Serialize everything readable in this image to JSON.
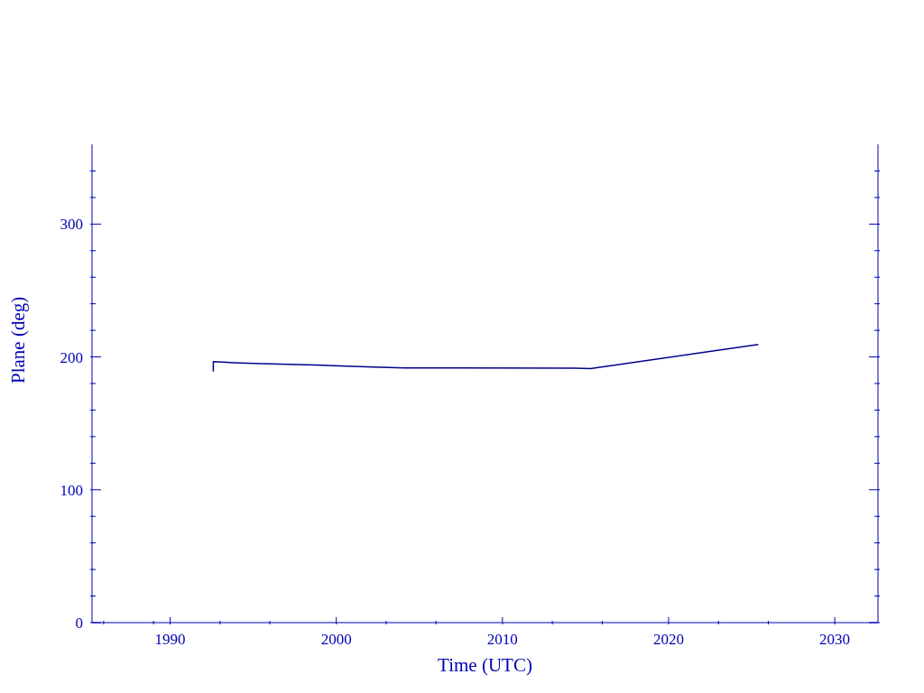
{
  "chart_data": {
    "type": "line",
    "xlabel": "Time (UTC)",
    "ylabel": "Plane (deg)",
    "x": [
      1992.6,
      1992.6,
      1993.8,
      1995.5,
      1997.1,
      1998.75,
      2000.2,
      2001.8,
      2004.1,
      2014.35,
      2015.3,
      2025.4
    ],
    "series": [
      {
        "color": "#00008b",
        "values": [
          189,
          196.4,
          195.7,
          195,
          194.5,
          193.9,
          193.2,
          192.5,
          191.8,
          191.6,
          191.2,
          209.3
        ]
      }
    ],
    "xlim": [
      1985.3,
      2032.6
    ],
    "xticks": [
      {
        "value": 1986,
        "label": null
      },
      {
        "value": 1989,
        "label": null
      },
      1990,
      {
        "value": 1993,
        "label": null
      },
      {
        "value": 1996,
        "label": null
      },
      2000,
      {
        "value": 2003,
        "label": null
      },
      {
        "value": 2006,
        "label": null
      },
      2010,
      {
        "value": 2013,
        "label": null
      },
      {
        "value": 2016,
        "label": null
      },
      2020,
      {
        "value": 2023,
        "label": null
      },
      {
        "value": 2026,
        "label": null
      },
      2030
    ],
    "ylim": [
      0,
      360
    ],
    "yticks": [
      0,
      {
        "value": 20,
        "label": null
      },
      {
        "value": 40,
        "label": null
      },
      {
        "value": 60,
        "label": null
      },
      {
        "value": 80,
        "label": null
      },
      100,
      {
        "value": 120,
        "label": null
      },
      {
        "value": 140,
        "label": null
      },
      {
        "value": 160,
        "label": null
      },
      {
        "value": 180,
        "label": null
      },
      200,
      {
        "value": 220,
        "label": null
      },
      {
        "value": 240,
        "label": null
      },
      {
        "value": 260,
        "label": null
      },
      {
        "value": 280,
        "label": null
      },
      300,
      {
        "value": 320,
        "label": null
      },
      {
        "value": 340,
        "label": null
      }
    ],
    "grid": false,
    "legend": false,
    "marker": "none",
    "line_style": "solid"
  }
}
